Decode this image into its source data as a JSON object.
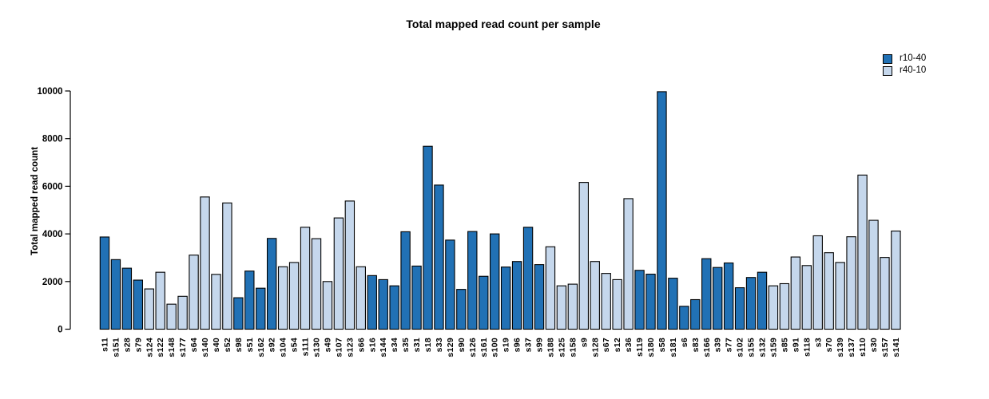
{
  "figure": {
    "title": "Total mapped read count per sample",
    "ylabel": "Total mapped read count"
  },
  "legend": {
    "items": [
      {
        "label": "r10-40",
        "color": "#2171b5"
      },
      {
        "label": "r40-10",
        "color": "#c5d7ec"
      }
    ]
  },
  "chart_data": {
    "type": "bar",
    "title": "Total mapped read count per sample",
    "xlabel": "",
    "ylabel": "Total mapped read count",
    "ylim": [
      0,
      10000
    ],
    "yticks": [
      0,
      2000,
      4000,
      6000,
      8000,
      10000
    ],
    "grid": false,
    "legend_position": "top-right",
    "series": [
      {
        "name": "r10-40",
        "color": "#2171b5"
      },
      {
        "name": "r40-10",
        "color": "#c5d7ec"
      }
    ],
    "categories": [
      "s11",
      "s151",
      "s28",
      "s79",
      "s124",
      "s122",
      "s148",
      "s177",
      "s64",
      "s140",
      "s40",
      "s52",
      "s98",
      "s51",
      "s162",
      "s92",
      "s104",
      "s54",
      "s111",
      "s130",
      "s49",
      "s107",
      "s123",
      "s66",
      "s16",
      "s144",
      "s34",
      "s35",
      "s31",
      "s18",
      "s33",
      "s129",
      "s90",
      "s126",
      "s161",
      "s100",
      "s19",
      "s96",
      "s37",
      "s99",
      "s188",
      "s125",
      "s158",
      "s9",
      "s128",
      "s67",
      "s12",
      "s36",
      "s119",
      "s180",
      "s58",
      "s181",
      "s6",
      "s83",
      "s166",
      "s39",
      "s77",
      "s102",
      "s155",
      "s132",
      "s159",
      "s85",
      "s91",
      "s118",
      "s3",
      "s70",
      "s139",
      "s137",
      "s110",
      "s30",
      "s157",
      "s141"
    ],
    "values": [
      3870,
      2920,
      2560,
      2060,
      1690,
      2390,
      1050,
      1380,
      3110,
      5550,
      2300,
      5300,
      1320,
      2440,
      1720,
      3810,
      2620,
      2800,
      4280,
      3800,
      2000,
      4670,
      5380,
      2620,
      2250,
      2080,
      1820,
      4090,
      2650,
      7680,
      6050,
      3740,
      1670,
      4100,
      2220,
      4000,
      2610,
      2840,
      4280,
      2710,
      3460,
      1820,
      1890,
      6160,
      2840,
      2340,
      2080,
      5480,
      2470,
      2310,
      9970,
      2140,
      960,
      1240,
      2960,
      2590,
      2780,
      1740,
      2170,
      2390,
      1820,
      1910,
      3030,
      2670,
      3920,
      3210,
      2800,
      3880,
      6470,
      4570,
      3010,
      4120
    ],
    "groups": [
      "r10-40",
      "r10-40",
      "r10-40",
      "r10-40",
      "r40-10",
      "r40-10",
      "r40-10",
      "r40-10",
      "r40-10",
      "r40-10",
      "r40-10",
      "r40-10",
      "r10-40",
      "r10-40",
      "r10-40",
      "r10-40",
      "r40-10",
      "r40-10",
      "r40-10",
      "r40-10",
      "r40-10",
      "r40-10",
      "r40-10",
      "r40-10",
      "r10-40",
      "r10-40",
      "r10-40",
      "r10-40",
      "r10-40",
      "r10-40",
      "r10-40",
      "r10-40",
      "r10-40",
      "r10-40",
      "r10-40",
      "r10-40",
      "r10-40",
      "r10-40",
      "r10-40",
      "r10-40",
      "r40-10",
      "r40-10",
      "r40-10",
      "r40-10",
      "r40-10",
      "r40-10",
      "r40-10",
      "r40-10",
      "r10-40",
      "r10-40",
      "r10-40",
      "r10-40",
      "r10-40",
      "r10-40",
      "r10-40",
      "r10-40",
      "r10-40",
      "r10-40",
      "r10-40",
      "r10-40",
      "r40-10",
      "r40-10",
      "r40-10",
      "r40-10",
      "r40-10",
      "r40-10",
      "r40-10",
      "r40-10",
      "r40-10",
      "r40-10",
      "r40-10",
      "r40-10"
    ]
  }
}
